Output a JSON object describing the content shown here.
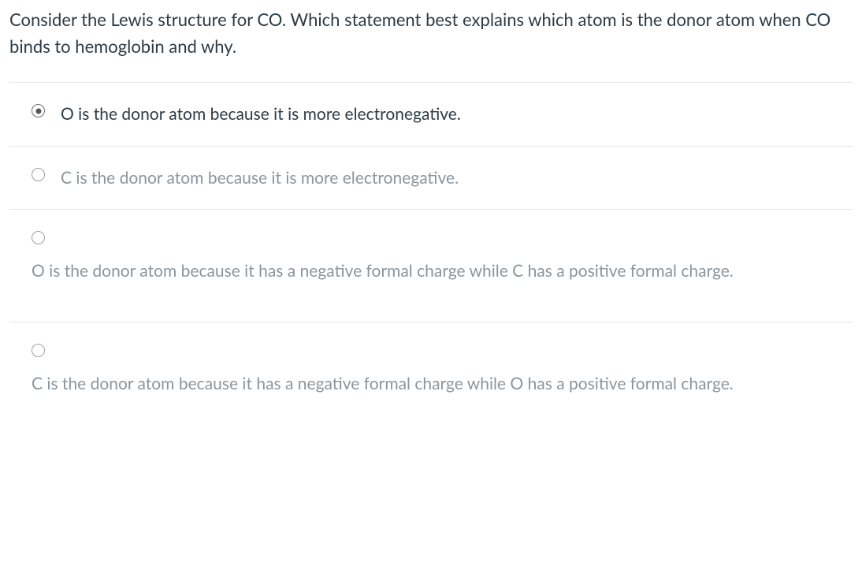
{
  "question": {
    "text": "Consider the Lewis structure for CO.  Which statement best explains which atom is the donor atom when CO binds to hemoglobin and why."
  },
  "options": {
    "items": [
      {
        "label": "O is the donor atom because it is more electronegative.",
        "selected": true
      },
      {
        "label": "C is the donor atom because it is more electronegative.",
        "selected": false
      },
      {
        "label": "O is the donor atom because it has a negative formal charge while C has a positive formal charge.",
        "selected": false
      },
      {
        "label": "C is the donor atom because it has a negative formal charge while O has a positive formal charge.",
        "selected": false
      }
    ]
  },
  "colors": {
    "text_primary": "#2d3b45",
    "text_muted": "#8c959c",
    "border": "#e5e5e5",
    "background": "#ffffff"
  }
}
